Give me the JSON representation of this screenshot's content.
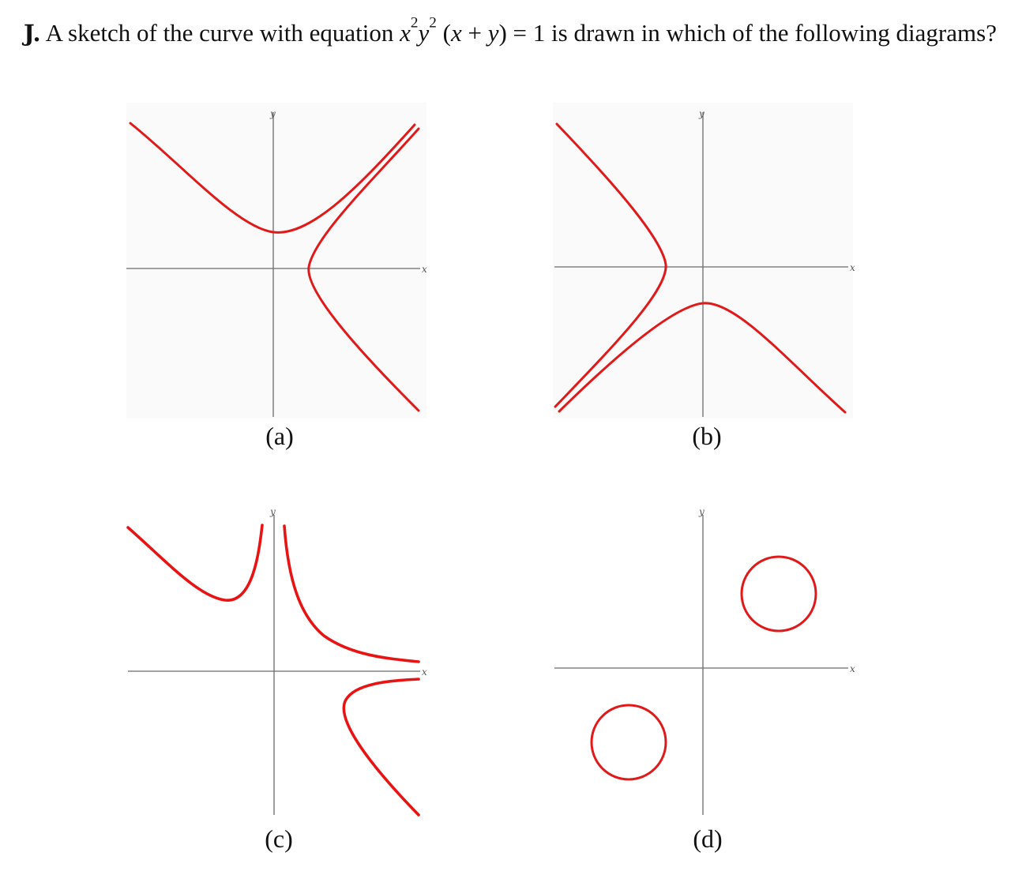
{
  "question": {
    "label": "J.",
    "text_before": " A sketch of the curve with equation ",
    "equation": "x²y² (x + y) = 1",
    "text_after": " is drawn in which of the following diagrams?"
  },
  "diagrams": [
    {
      "id": "a",
      "caption": "(a)",
      "x_label": "x",
      "y_label": "y"
    },
    {
      "id": "b",
      "caption": "(b)",
      "x_label": "x",
      "y_label": "y"
    },
    {
      "id": "c",
      "caption": "(c)",
      "x_label": "x",
      "y_label": "y"
    },
    {
      "id": "d",
      "caption": "(d)",
      "x_label": "x",
      "y_label": "y"
    }
  ],
  "colors": {
    "curve": "#e01a1a",
    "axis": "#6b6b6b"
  }
}
